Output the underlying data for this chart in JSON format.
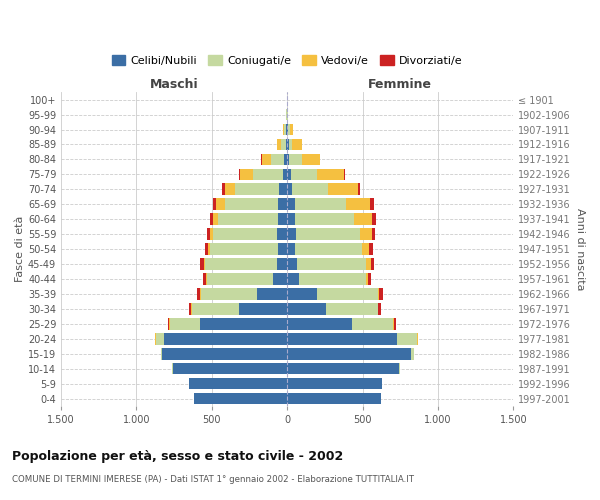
{
  "age_groups": [
    "0-4",
    "5-9",
    "10-14",
    "15-19",
    "20-24",
    "25-29",
    "30-34",
    "35-39",
    "40-44",
    "45-49",
    "50-54",
    "55-59",
    "60-64",
    "65-69",
    "70-74",
    "75-79",
    "80-84",
    "85-89",
    "90-94",
    "95-99",
    "100+"
  ],
  "birth_years": [
    "1997-2001",
    "1992-1996",
    "1987-1991",
    "1982-1986",
    "1977-1981",
    "1972-1976",
    "1967-1971",
    "1962-1966",
    "1957-1961",
    "1952-1956",
    "1947-1951",
    "1942-1946",
    "1937-1941",
    "1932-1936",
    "1927-1931",
    "1922-1926",
    "1917-1921",
    "1912-1916",
    "1907-1911",
    "1902-1906",
    "≤ 1901"
  ],
  "maschi": {
    "celibi": [
      620,
      650,
      760,
      830,
      820,
      580,
      320,
      200,
      95,
      65,
      60,
      65,
      60,
      60,
      55,
      30,
      20,
      10,
      5,
      2,
      0
    ],
    "coniugati": [
      0,
      0,
      5,
      5,
      50,
      200,
      310,
      370,
      440,
      480,
      450,
      430,
      400,
      350,
      290,
      200,
      90,
      30,
      15,
      3,
      0
    ],
    "vedovi": [
      0,
      0,
      0,
      0,
      5,
      5,
      5,
      5,
      5,
      10,
      15,
      20,
      30,
      60,
      70,
      80,
      60,
      30,
      5,
      2,
      0
    ],
    "divorziati": [
      0,
      0,
      0,
      0,
      5,
      5,
      15,
      20,
      20,
      20,
      20,
      20,
      25,
      25,
      15,
      10,
      5,
      0,
      0,
      0,
      0
    ]
  },
  "femmine": {
    "nubili": [
      620,
      630,
      740,
      820,
      730,
      430,
      260,
      200,
      80,
      65,
      55,
      60,
      50,
      50,
      30,
      25,
      15,
      10,
      5,
      2,
      0
    ],
    "coniugate": [
      0,
      0,
      5,
      20,
      130,
      270,
      340,
      400,
      440,
      460,
      440,
      420,
      390,
      340,
      240,
      170,
      80,
      25,
      15,
      3,
      0
    ],
    "vedove": [
      0,
      0,
      0,
      0,
      5,
      10,
      5,
      10,
      15,
      30,
      50,
      80,
      120,
      160,
      200,
      180,
      120,
      60,
      20,
      3,
      0
    ],
    "divorziate": [
      0,
      0,
      0,
      0,
      5,
      10,
      15,
      25,
      20,
      20,
      25,
      25,
      30,
      25,
      15,
      10,
      5,
      0,
      0,
      0,
      0
    ]
  },
  "colors": {
    "celibi": "#3b6ea5",
    "coniugati": "#c5d9a0",
    "vedovi": "#f5c040",
    "divorziati": "#cc2222"
  },
  "title": "Popolazione per età, sesso e stato civile - 2002",
  "subtitle": "COMUNE DI TERMINI IMERESE (PA) - Dati ISTAT 1° gennaio 2002 - Elaborazione TUTTITALIA.IT",
  "xlim": 1500,
  "ylabel_left": "Fasce di età",
  "ylabel_right": "Anni di nascita",
  "legend_labels": [
    "Celibi/Nubili",
    "Coniugati/e",
    "Vedovi/e",
    "Divorziati/e"
  ],
  "maschi_label": "Maschi",
  "femmine_label": "Femmine",
  "background_color": "#ffffff",
  "grid_color": "#cccccc"
}
